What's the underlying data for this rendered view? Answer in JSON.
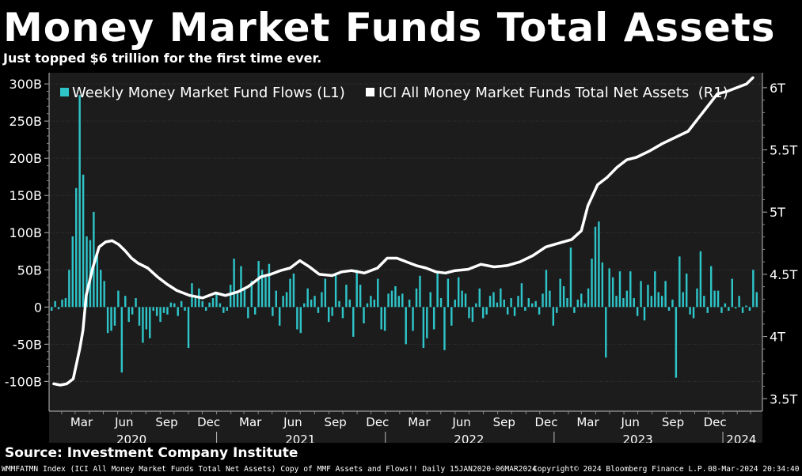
{
  "title": "Money Market Funds Total Assets",
  "subtitle": "Just topped $6 trillion for the first time ever.",
  "source": "Source: Investment Company Institute",
  "footer": {
    "left": "WMMFATMN Index (ICI All Money Market Funds Total Net Assets) Copy of MMF Assets and Flows!! Daily 15JAN2020-06MAR2024",
    "copyright": "Copyright© 2024 Bloomberg Finance L.P.",
    "timestamp": "08-Mar-2024 20:34:40"
  },
  "colors": {
    "flows": "#2ec4c8",
    "assets": "#ffffff",
    "plot_bg": "#1c1c1c",
    "grid": "#3a3a3a"
  },
  "chart_data": {
    "type": "bar+line",
    "legend_position": "top-left",
    "grid": true,
    "x_range": [
      "2020-01-15",
      "2024-03-06"
    ],
    "x_month_labels": [
      "Mar",
      "Jun",
      "Sep",
      "Dec",
      "Mar",
      "Jun",
      "Sep",
      "Dec",
      "Mar",
      "Jun",
      "Sep",
      "Dec",
      "Mar",
      "Jun",
      "Sep",
      "Dec"
    ],
    "x_year_labels": [
      "2020",
      "2021",
      "2022",
      "2023",
      "2024"
    ],
    "left_axis": {
      "ticks": [
        -100,
        -50,
        0,
        50,
        100,
        150,
        200,
        250,
        300
      ],
      "tick_labels": [
        "-100B",
        "-50B",
        "0",
        "50B",
        "100B",
        "150B",
        "200B",
        "250B",
        "300B"
      ],
      "range": [
        -140,
        315
      ]
    },
    "right_axis": {
      "ticks": [
        3.5,
        4,
        4.5,
        5,
        5.5,
        6
      ],
      "tick_labels": [
        "3.5T",
        "4T",
        "4.5T",
        "5T",
        "5.5T",
        "6T"
      ],
      "range": [
        3.4,
        6.12
      ]
    },
    "series": [
      {
        "name": "Weekly Money Market Fund Flows (L1)",
        "axis": "left",
        "kind": "bar",
        "values": [
          -5,
          8,
          -3,
          10,
          12,
          50,
          95,
          160,
          285,
          178,
          95,
          90,
          128,
          72,
          50,
          35,
          -35,
          -32,
          -25,
          22,
          -88,
          15,
          -20,
          -10,
          12,
          -25,
          -48,
          -30,
          -42,
          -5,
          -12,
          -20,
          -8,
          -10,
          6,
          5,
          -12,
          8,
          -5,
          -55,
          32,
          12,
          25,
          8,
          -5,
          6,
          12,
          20,
          5,
          -8,
          -5,
          30,
          65,
          18,
          55,
          25,
          -15,
          35,
          -10,
          62,
          50,
          40,
          58,
          -12,
          22,
          -25,
          15,
          20,
          38,
          45,
          -30,
          -35,
          5,
          25,
          10,
          15,
          -8,
          20,
          38,
          -20,
          -12,
          45,
          8,
          -15,
          30,
          10,
          -40,
          50,
          30,
          -22,
          5,
          15,
          10,
          38,
          -30,
          -32,
          18,
          22,
          28,
          15,
          18,
          -50,
          10,
          -32,
          25,
          42,
          -55,
          -42,
          20,
          -30,
          48,
          12,
          -58,
          38,
          -25,
          10,
          40,
          22,
          18,
          -15,
          -20,
          5,
          25,
          -15,
          -10,
          15,
          20,
          6,
          25,
          10,
          -10,
          12,
          -12,
          15,
          32,
          -5,
          12,
          5,
          8,
          -10,
          18,
          50,
          22,
          -25,
          -8,
          38,
          28,
          12,
          80,
          -8,
          10,
          18,
          5,
          25,
          65,
          108,
          115,
          60,
          -68,
          52,
          40,
          15,
          48,
          12,
          22,
          48,
          12,
          -12,
          35,
          -18,
          30,
          15,
          48,
          20,
          15,
          35,
          -5,
          10,
          -95,
          68,
          20,
          45,
          -10,
          -15,
          25,
          75,
          15,
          -8,
          55,
          22,
          22,
          -8,
          5,
          -5,
          38,
          -2,
          15,
          -8,
          2,
          -5,
          50,
          20
        ]
      },
      {
        "name": "ICI All Money Market Funds Total Net Assets  (R1)",
        "axis": "right",
        "kind": "line",
        "points": [
          [
            "2020-01-15",
            3.62
          ],
          [
            "2020-01-29",
            3.61
          ],
          [
            "2020-02-12",
            3.62
          ],
          [
            "2020-02-26",
            3.66
          ],
          [
            "2020-03-11",
            3.9
          ],
          [
            "2020-03-18",
            4.05
          ],
          [
            "2020-03-25",
            4.33
          ],
          [
            "2020-04-08",
            4.55
          ],
          [
            "2020-04-22",
            4.72
          ],
          [
            "2020-05-06",
            4.76
          ],
          [
            "2020-05-20",
            4.77
          ],
          [
            "2020-06-03",
            4.74
          ],
          [
            "2020-06-17",
            4.69
          ],
          [
            "2020-07-01",
            4.63
          ],
          [
            "2020-07-15",
            4.59
          ],
          [
            "2020-08-05",
            4.55
          ],
          [
            "2020-08-26",
            4.48
          ],
          [
            "2020-09-16",
            4.42
          ],
          [
            "2020-10-07",
            4.37
          ],
          [
            "2020-11-04",
            4.33
          ],
          [
            "2020-12-02",
            4.31
          ],
          [
            "2020-12-30",
            4.35
          ],
          [
            "2021-01-20",
            4.33
          ],
          [
            "2021-02-17",
            4.36
          ],
          [
            "2021-03-10",
            4.4
          ],
          [
            "2021-04-07",
            4.48
          ],
          [
            "2021-04-28",
            4.5
          ],
          [
            "2021-05-19",
            4.53
          ],
          [
            "2021-06-09",
            4.55
          ],
          [
            "2021-06-30",
            4.61
          ],
          [
            "2021-07-21",
            4.56
          ],
          [
            "2021-08-11",
            4.5
          ],
          [
            "2021-09-08",
            4.49
          ],
          [
            "2021-09-29",
            4.52
          ],
          [
            "2021-10-20",
            4.53
          ],
          [
            "2021-11-17",
            4.51
          ],
          [
            "2021-12-15",
            4.55
          ],
          [
            "2022-01-05",
            4.63
          ],
          [
            "2022-01-26",
            4.63
          ],
          [
            "2022-02-16",
            4.6
          ],
          [
            "2022-03-09",
            4.57
          ],
          [
            "2022-03-30",
            4.55
          ],
          [
            "2022-04-20",
            4.52
          ],
          [
            "2022-05-11",
            4.51
          ],
          [
            "2022-06-01",
            4.53
          ],
          [
            "2022-06-29",
            4.54
          ],
          [
            "2022-07-27",
            4.58
          ],
          [
            "2022-08-24",
            4.56
          ],
          [
            "2022-09-21",
            4.57
          ],
          [
            "2022-10-19",
            4.6
          ],
          [
            "2022-11-16",
            4.65
          ],
          [
            "2022-12-14",
            4.72
          ],
          [
            "2023-01-11",
            4.75
          ],
          [
            "2023-02-08",
            4.78
          ],
          [
            "2023-03-01",
            4.85
          ],
          [
            "2023-03-15",
            5.05
          ],
          [
            "2023-04-05",
            5.22
          ],
          [
            "2023-04-26",
            5.28
          ],
          [
            "2023-05-17",
            5.36
          ],
          [
            "2023-06-07",
            5.42
          ],
          [
            "2023-06-28",
            5.44
          ],
          [
            "2023-07-26",
            5.49
          ],
          [
            "2023-08-23",
            5.55
          ],
          [
            "2023-09-20",
            5.6
          ],
          [
            "2023-10-18",
            5.65
          ],
          [
            "2023-11-08",
            5.75
          ],
          [
            "2023-11-29",
            5.85
          ],
          [
            "2023-12-20",
            5.95
          ],
          [
            "2024-01-10",
            5.97
          ],
          [
            "2024-01-31",
            6.0
          ],
          [
            "2024-02-21",
            6.03
          ],
          [
            "2024-03-06",
            6.08
          ]
        ]
      }
    ]
  }
}
